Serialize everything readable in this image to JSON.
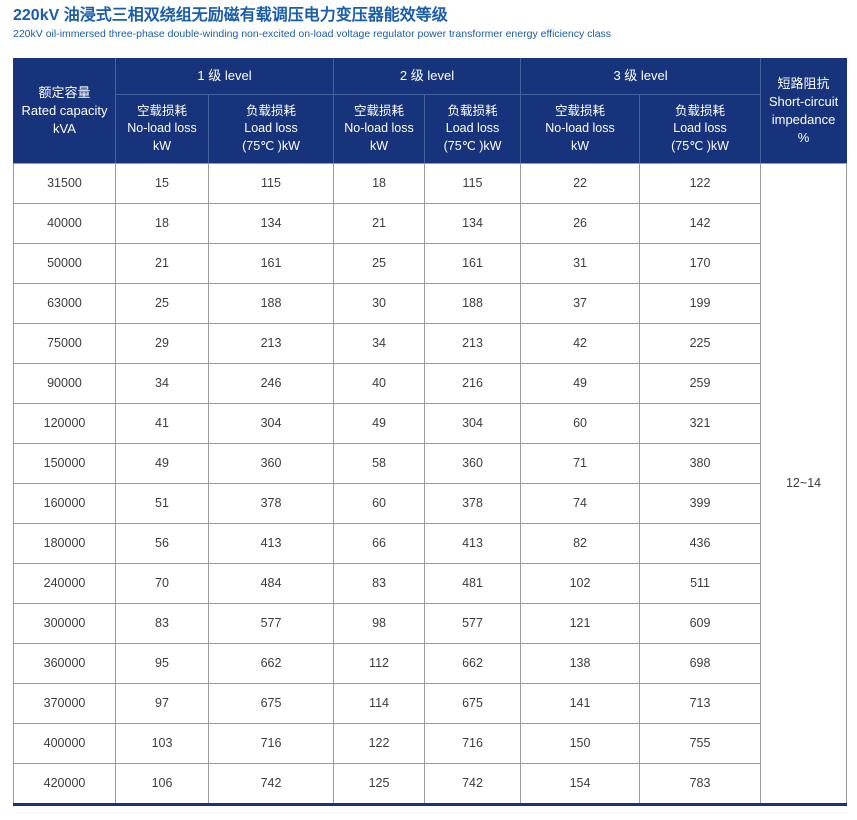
{
  "page": {
    "title": "220kV 油浸式三相双绕组无励磁有载调压电力变压器能效等级",
    "subtitle": "220kV oil-immersed three-phase double-winding non-excited on-load voltage regulator power transformer energy efficiency class"
  },
  "colors": {
    "title_blue": "#1a5dab",
    "header_bg": "#16337c",
    "header_divider": "#44629f",
    "body_border": "#9a9a9a",
    "body_text": "#3d3d3d"
  },
  "table": {
    "headers": {
      "rated_capacity": "额定容量\nRated capacity\nkVA",
      "level1": "1 级 level",
      "level2": "2 级 level",
      "level3": "3 级 level",
      "no_load": "空载损耗\nNo-load loss\nkW",
      "load": "负载损耗\nLoad loss\n(75℃ )kW",
      "impedance": "短路阻抗\nShort-circuit\nimpedance\n%"
    },
    "impedance_value": "12~14",
    "rows": [
      [
        31500,
        15,
        115,
        18,
        115,
        22,
        122
      ],
      [
        40000,
        18,
        134,
        21,
        134,
        26,
        142
      ],
      [
        50000,
        21,
        161,
        25,
        161,
        31,
        170
      ],
      [
        63000,
        25,
        188,
        30,
        188,
        37,
        199
      ],
      [
        75000,
        29,
        213,
        34,
        213,
        42,
        225
      ],
      [
        90000,
        34,
        246,
        40,
        216,
        49,
        259
      ],
      [
        120000,
        41,
        304,
        49,
        304,
        60,
        321
      ],
      [
        150000,
        49,
        360,
        58,
        360,
        71,
        380
      ],
      [
        160000,
        51,
        378,
        60,
        378,
        74,
        399
      ],
      [
        180000,
        56,
        413,
        66,
        413,
        82,
        436
      ],
      [
        240000,
        70,
        484,
        83,
        481,
        102,
        511
      ],
      [
        300000,
        83,
        577,
        98,
        577,
        121,
        609
      ],
      [
        360000,
        95,
        662,
        112,
        662,
        138,
        698
      ],
      [
        370000,
        97,
        675,
        114,
        675,
        141,
        713
      ],
      [
        400000,
        103,
        716,
        122,
        716,
        150,
        755
      ],
      [
        420000,
        106,
        742,
        125,
        742,
        154,
        783
      ]
    ]
  }
}
